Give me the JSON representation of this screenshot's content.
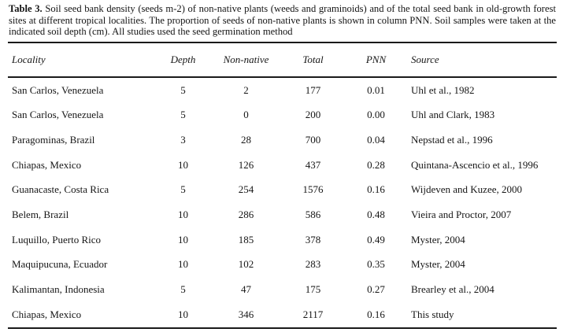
{
  "caption": {
    "label": "Table 3.",
    "text": "Soil seed bank density (seeds m-2) of non-native plants (weeds and graminoids) and of the total seed bank in old-growth forest sites at different tropical localities. The proportion of seeds of non-native plants is shown in column PNN. Soil samples were taken at the indicated soil depth (cm). All studies used the seed germination method"
  },
  "table": {
    "columns": [
      "Locality",
      "Depth",
      "Non-native",
      "Total",
      "PNN",
      "Source"
    ],
    "rows": [
      {
        "locality": "San Carlos, Venezuela",
        "depth": "5",
        "non_native": "2",
        "total": "177",
        "pnn": "0.01",
        "source": "Uhl et al., 1982"
      },
      {
        "locality": "San Carlos, Venezuela",
        "depth": "5",
        "non_native": "0",
        "total": "200",
        "pnn": "0.00",
        "source": "Uhl and Clark, 1983"
      },
      {
        "locality": "Paragominas, Brazil",
        "depth": "3",
        "non_native": "28",
        "total": "700",
        "pnn": "0.04",
        "source": "Nepstad et al., 1996"
      },
      {
        "locality": "Chiapas, Mexico",
        "depth": "10",
        "non_native": "126",
        "total": "437",
        "pnn": "0.28",
        "source": "Quintana-Ascencio et al., 1996"
      },
      {
        "locality": "Guanacaste, Costa Rica",
        "depth": "5",
        "non_native": "254",
        "total": "1576",
        "pnn": "0.16",
        "source": "Wijdeven and Kuzee, 2000"
      },
      {
        "locality": "Belem, Brazil",
        "depth": "10",
        "non_native": "286",
        "total": "586",
        "pnn": "0.48",
        "source": "Vieira and Proctor, 2007"
      },
      {
        "locality": "Luquillo, Puerto Rico",
        "depth": "10",
        "non_native": "185",
        "total": "378",
        "pnn": "0.49",
        "source": "Myster, 2004"
      },
      {
        "locality": "Maquipucuna, Ecuador",
        "depth": "10",
        "non_native": "102",
        "total": "283",
        "pnn": "0.35",
        "source": "Myster, 2004"
      },
      {
        "locality": "Kalimantan, Indonesia",
        "depth": "5",
        "non_native": "47",
        "total": "175",
        "pnn": "0.27",
        "source": "Brearley et al., 2004"
      },
      {
        "locality": "Chiapas, Mexico",
        "depth": "10",
        "non_native": "346",
        "total": "2117",
        "pnn": "0.16",
        "source": "This study"
      }
    ]
  },
  "chart_data": {
    "type": "table",
    "title": "Table 3. Soil seed bank density (seeds m-2) of non-native plants and of the total seed bank in old-growth forest sites at different tropical localities",
    "columns": [
      "Locality",
      "Depth",
      "Non-native",
      "Total",
      "PNN",
      "Source"
    ],
    "rows": [
      [
        "San Carlos, Venezuela",
        5,
        2,
        177,
        0.01,
        "Uhl et al., 1982"
      ],
      [
        "San Carlos, Venezuela",
        5,
        0,
        200,
        0.0,
        "Uhl and Clark, 1983"
      ],
      [
        "Paragominas, Brazil",
        3,
        28,
        700,
        0.04,
        "Nepstad et al., 1996"
      ],
      [
        "Chiapas, Mexico",
        10,
        126,
        437,
        0.28,
        "Quintana-Ascencio et al., 1996"
      ],
      [
        "Guanacaste, Costa Rica",
        5,
        254,
        1576,
        0.16,
        "Wijdeven and Kuzee, 2000"
      ],
      [
        "Belem, Brazil",
        10,
        286,
        586,
        0.48,
        "Vieira and Proctor, 2007"
      ],
      [
        "Luquillo, Puerto Rico",
        10,
        185,
        378,
        0.49,
        "Myster, 2004"
      ],
      [
        "Maquipucuna, Ecuador",
        10,
        102,
        283,
        0.35,
        "Myster, 2004"
      ],
      [
        "Kalimantan, Indonesia",
        5,
        47,
        175,
        0.27,
        "Brearley et al., 2004"
      ],
      [
        "Chiapas, Mexico",
        10,
        346,
        2117,
        0.16,
        "This study"
      ]
    ]
  }
}
